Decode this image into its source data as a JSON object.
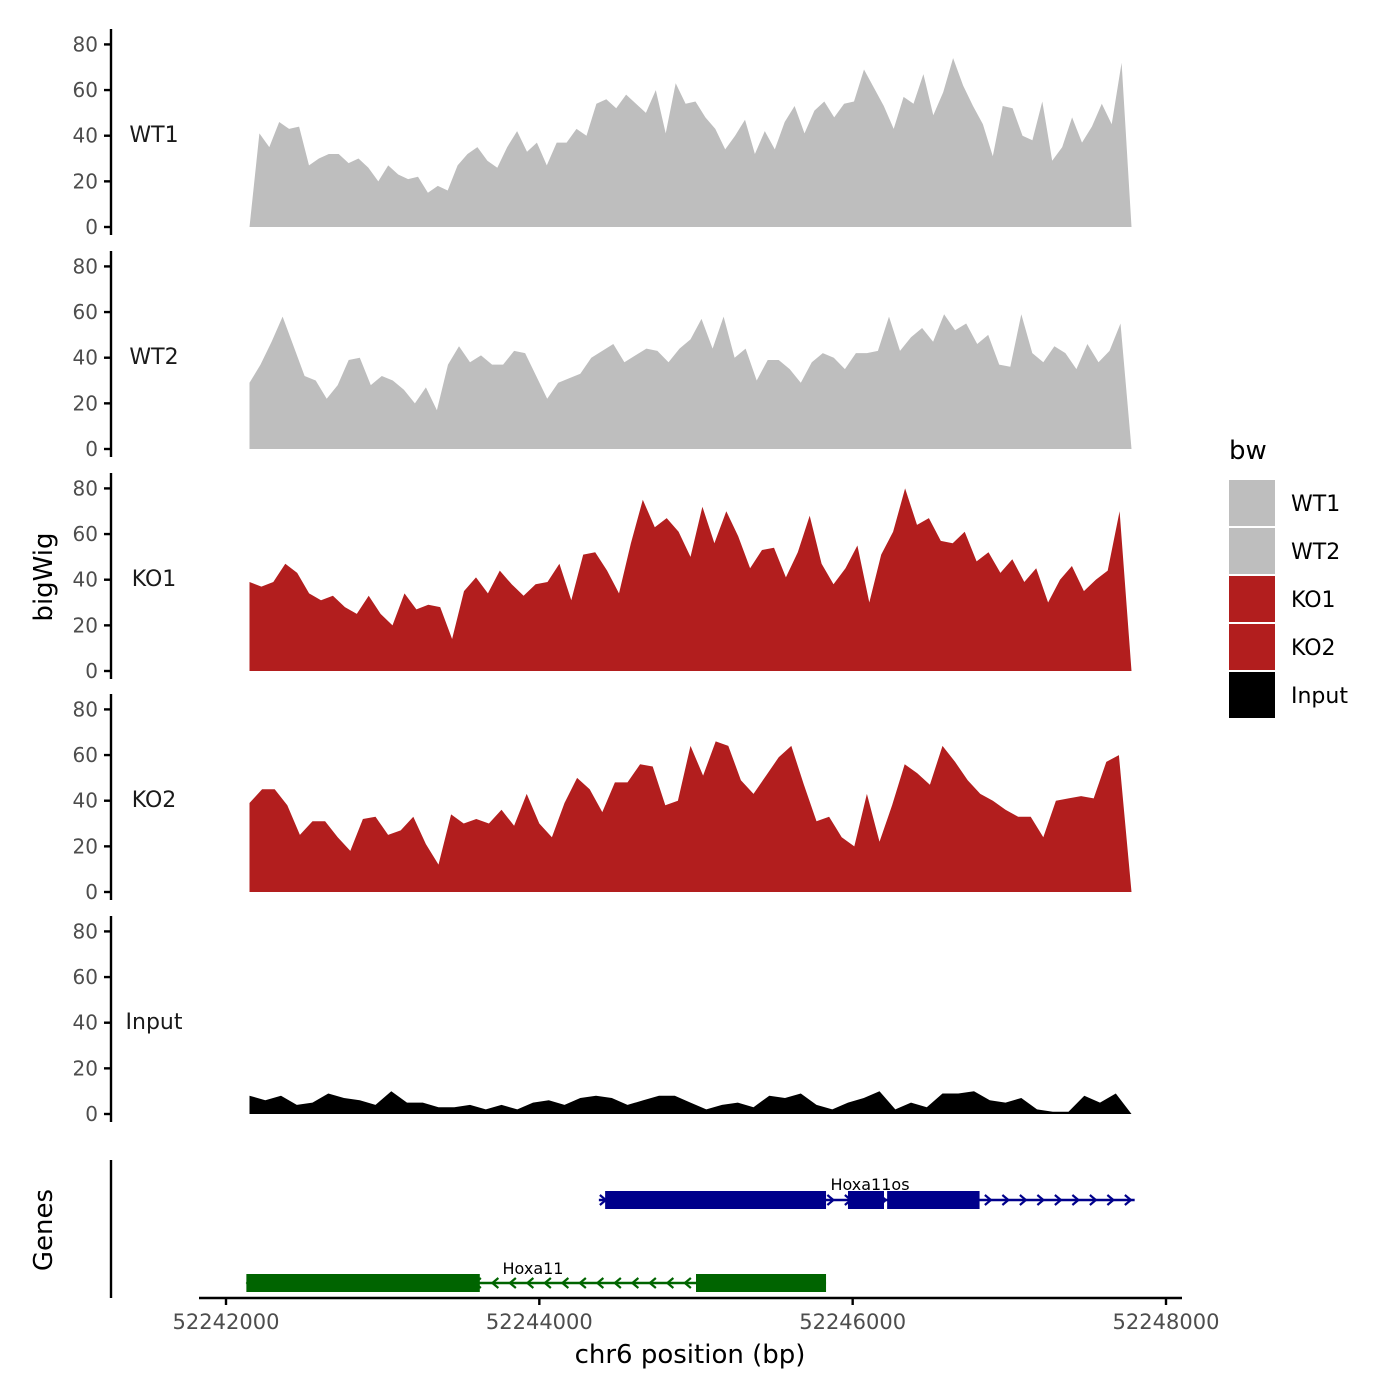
{
  "chart_data": {
    "type": "area",
    "xlabel": "chr6 position (bp)",
    "ylabel": "bigWig",
    "genes_label": "Genes",
    "xlim": [
      52241850,
      52248100
    ],
    "x_ticks": [
      52242000,
      52244000,
      52246000,
      52248000
    ],
    "x_tick_labels": [
      "52242000",
      "52244000",
      "52246000",
      "52248000"
    ],
    "ylim": [
      0,
      85
    ],
    "y_ticks": [
      0,
      20,
      40,
      60,
      80
    ],
    "y_tick_labels": [
      "0",
      "20",
      "40",
      "60",
      "80"
    ],
    "x_start": 52242150,
    "x_end": 52247780,
    "legend": {
      "title": "bw",
      "position": "right",
      "entries": [
        {
          "label": "WT1",
          "color": "#bebebe"
        },
        {
          "label": "WT2",
          "color": "#bebebe"
        },
        {
          "label": "KO1",
          "color": "#b21e1e"
        },
        {
          "label": "KO2",
          "color": "#b21e1e"
        },
        {
          "label": "Input",
          "color": "#000000"
        }
      ]
    },
    "tracks": [
      {
        "name": "WT1",
        "color": "#bebebe",
        "values": [
          0,
          41,
          35,
          46,
          43,
          44,
          27,
          30,
          32,
          32,
          28,
          30,
          26,
          20,
          27,
          23,
          21,
          22,
          15,
          18,
          16,
          27,
          32,
          35,
          29,
          26,
          35,
          42,
          33,
          37,
          27,
          37,
          37,
          43,
          40,
          54,
          56,
          52,
          58,
          54,
          50,
          60,
          41,
          63,
          54,
          55,
          48,
          43,
          34,
          40,
          47,
          32,
          42,
          34,
          46,
          53,
          41,
          51,
          55,
          48,
          54,
          55,
          69,
          61,
          53,
          43,
          57,
          54,
          67,
          49,
          59,
          74,
          62,
          53,
          45,
          31,
          53,
          52,
          40,
          38,
          55,
          29,
          35,
          48,
          37,
          44,
          54,
          45,
          72,
          0
        ]
      },
      {
        "name": "WT2",
        "color": "#bebebe",
        "values": [
          29,
          37,
          47,
          58,
          45,
          32,
          30,
          22,
          28,
          39,
          40,
          28,
          32,
          30,
          26,
          20,
          27,
          17,
          37,
          45,
          38,
          41,
          37,
          37,
          43,
          42,
          32,
          22,
          29,
          31,
          33,
          40,
          43,
          46,
          38,
          41,
          44,
          43,
          38,
          44,
          48,
          57,
          44,
          58,
          40,
          44,
          30,
          39,
          39,
          35,
          29,
          38,
          42,
          40,
          35,
          42,
          42,
          43,
          58,
          43,
          49,
          53,
          47,
          59,
          52,
          55,
          46,
          50,
          37,
          36,
          59,
          42,
          38,
          45,
          42,
          35,
          46,
          38,
          43,
          55,
          0
        ]
      },
      {
        "name": "KO1",
        "color": "#b21e1e",
        "values": [
          39,
          37,
          39,
          47,
          43,
          34,
          31,
          33,
          28,
          25,
          33,
          25,
          20,
          34,
          27,
          29,
          28,
          14,
          35,
          41,
          34,
          44,
          38,
          33,
          38,
          39,
          47,
          31,
          51,
          52,
          44,
          34,
          56,
          75,
          63,
          67,
          61,
          50,
          72,
          56,
          70,
          59,
          45,
          53,
          54,
          41,
          52,
          68,
          47,
          38,
          45,
          55,
          30,
          51,
          61,
          80,
          64,
          67,
          57,
          56,
          61,
          48,
          52,
          43,
          49,
          39,
          45,
          30,
          40,
          46,
          35,
          40,
          44,
          70,
          0
        ]
      },
      {
        "name": "KO2",
        "color": "#b21e1e",
        "values": [
          39,
          45,
          45,
          38,
          25,
          31,
          31,
          24,
          18,
          32,
          33,
          25,
          27,
          33,
          21,
          12,
          34,
          30,
          32,
          30,
          36,
          29,
          43,
          30,
          24,
          39,
          50,
          45,
          35,
          48,
          48,
          56,
          55,
          38,
          40,
          64,
          51,
          66,
          64,
          49,
          43,
          51,
          59,
          64,
          47,
          31,
          33,
          24,
          20,
          43,
          22,
          38,
          56,
          52,
          47,
          64,
          57,
          49,
          43,
          40,
          36,
          33,
          33,
          24,
          40,
          41,
          42,
          41,
          57,
          60,
          0
        ]
      },
      {
        "name": "Input",
        "color": "#000000",
        "values": [
          8,
          6,
          8,
          4,
          5,
          9,
          7,
          6,
          4,
          10,
          5,
          5,
          3,
          3,
          4,
          2,
          4,
          2,
          5,
          6,
          4,
          7,
          8,
          7,
          4,
          6,
          8,
          8,
          5,
          2,
          4,
          5,
          3,
          8,
          7,
          9,
          4,
          2,
          5,
          7,
          10,
          2,
          5,
          3,
          9,
          9,
          10,
          6,
          5,
          7,
          2,
          1,
          1,
          8,
          5,
          9,
          0
        ]
      }
    ],
    "genes": [
      {
        "name": "Hoxa11os",
        "strand": "+",
        "color": "#00008b",
        "start": 52244380,
        "end": 52247800,
        "exons": [
          [
            52244420,
            52245830
          ],
          [
            52245970,
            52246200
          ],
          [
            52246220,
            52246810
          ]
        ]
      },
      {
        "name": "Hoxa11",
        "strand": "-",
        "color": "#006400",
        "start": 52242130,
        "end": 52245830,
        "exons": [
          [
            52242130,
            52243620
          ],
          [
            52245000,
            52245830
          ]
        ]
      }
    ]
  }
}
